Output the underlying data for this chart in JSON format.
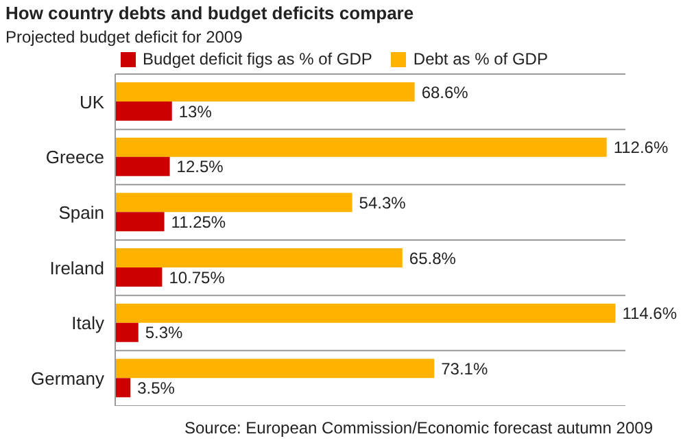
{
  "chart_data": {
    "type": "bar",
    "orientation": "horizontal",
    "title": "How country debts and budget deficits compare",
    "subtitle": "Projected budget deficit for 2009",
    "categories": [
      "UK",
      "Greece",
      "Spain",
      "Ireland",
      "Italy",
      "Germany"
    ],
    "series": [
      {
        "name": "Budget deficit figs as % of GDP",
        "color": "#cc0000",
        "values": [
          13,
          12.5,
          11.25,
          10.75,
          5.3,
          3.5
        ],
        "value_labels": [
          "13%",
          "12.5%",
          "11.25%",
          "10.75%",
          "5.3%",
          "3.5%"
        ]
      },
      {
        "name": "Debt as % of GDP",
        "color": "#ffb300",
        "values": [
          68.6,
          112.6,
          54.3,
          65.8,
          114.6,
          73.1
        ],
        "value_labels": [
          "68.6%",
          "112.6%",
          "54.3%",
          "65.8%",
          "114.6%",
          "73.1%"
        ]
      }
    ],
    "grid": "y",
    "legend": "top",
    "annotations": [
      "Source: European Commission/Economic forecast autumn 2009"
    ]
  }
}
